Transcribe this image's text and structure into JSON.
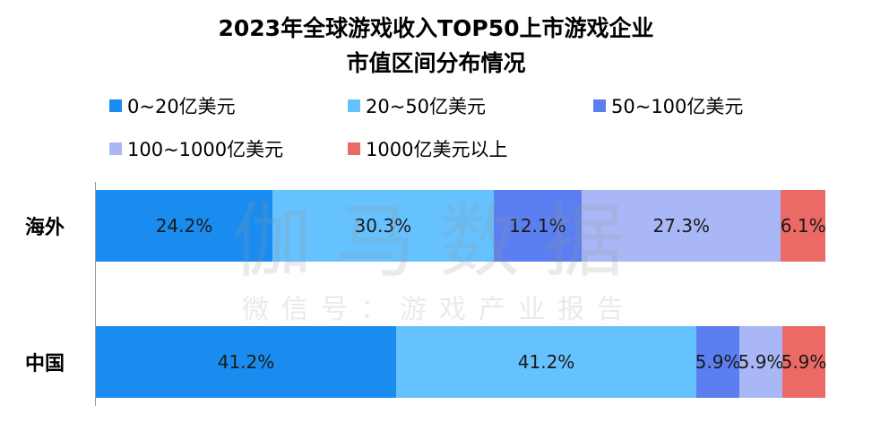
{
  "chart_data": {
    "type": "bar",
    "orientation": "horizontal",
    "stacked": true,
    "title": "2023年全球游戏收入TOP50上市游戏企业",
    "subtitle": "市值区间分布情况",
    "categories": [
      "海外",
      "中国"
    ],
    "series": [
      {
        "name": "0~20亿美元",
        "color": "#1a8cf0",
        "values": [
          24.2,
          41.2
        ],
        "labels": [
          "24.2%",
          "41.2%"
        ]
      },
      {
        "name": "20~50亿美元",
        "color": "#66c2ff",
        "values": [
          30.3,
          41.2
        ],
        "labels": [
          "30.3%",
          "41.2%"
        ]
      },
      {
        "name": "50~100亿美元",
        "color": "#5b7ff0",
        "values": [
          12.1,
          5.9
        ],
        "labels": [
          "12.1%",
          "5.9%"
        ]
      },
      {
        "name": "100~1000亿美元",
        "color": "#a9b7f7",
        "values": [
          27.3,
          5.9
        ],
        "labels": [
          "27.3%",
          "5.9%"
        ]
      },
      {
        "name": "1000亿美元以上",
        "color": "#ec6a66",
        "values": [
          6.1,
          5.9
        ],
        "labels": [
          "6.1%",
          "5.9%"
        ]
      }
    ],
    "legend_position": "top",
    "grid": false
  },
  "watermark": {
    "line1": "伽马数据",
    "line2": "微信号：游戏产业报告"
  }
}
